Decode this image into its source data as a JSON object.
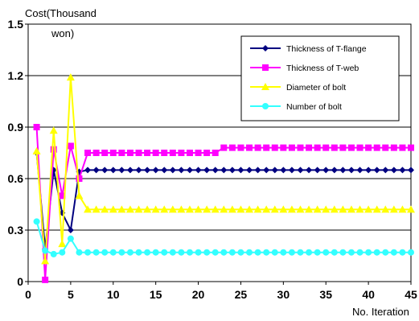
{
  "chart_data": {
    "type": "line",
    "title": "",
    "ylabel_lines": [
      "Cost(Thousand",
      "won)"
    ],
    "xlabel": "No. Iteration",
    "xlim": [
      0,
      45
    ],
    "ylim": [
      0,
      1.5
    ],
    "xticks": [
      0,
      5,
      10,
      15,
      20,
      25,
      30,
      35,
      40,
      45
    ],
    "yticks": [
      0,
      0.3,
      0.6,
      0.9,
      1.2,
      1.5
    ],
    "ytick_labels": [
      "0",
      "0.3",
      "0.6",
      "0.9",
      "1.2",
      "1.5"
    ],
    "grid": "horizontal",
    "legend": "top-right",
    "series": [
      {
        "name": "Thickness of T-flange",
        "color": "#000080",
        "marker": "diamond",
        "x": [
          1,
          2,
          3,
          4,
          5,
          6,
          7,
          8,
          9,
          10,
          11,
          12,
          13,
          14,
          15,
          16,
          17,
          18,
          19,
          20,
          21,
          22,
          23,
          24,
          25,
          26,
          27,
          28,
          29,
          30,
          31,
          32,
          33,
          34,
          35,
          36,
          37,
          38,
          39,
          40,
          41,
          42,
          43,
          44,
          45
        ],
        "values": [
          0.75,
          0.19,
          0.65,
          0.4,
          0.3,
          0.64,
          0.65,
          0.65,
          0.65,
          0.65,
          0.65,
          0.65,
          0.65,
          0.65,
          0.65,
          0.65,
          0.65,
          0.65,
          0.65,
          0.65,
          0.65,
          0.65,
          0.65,
          0.65,
          0.65,
          0.65,
          0.65,
          0.65,
          0.65,
          0.65,
          0.65,
          0.65,
          0.65,
          0.65,
          0.65,
          0.65,
          0.65,
          0.65,
          0.65,
          0.65,
          0.65,
          0.65,
          0.65,
          0.65,
          0.65
        ]
      },
      {
        "name": "Thickness of T-web",
        "color": "#ff00ff",
        "marker": "square",
        "x": [
          1,
          2,
          3,
          4,
          5,
          6,
          7,
          8,
          9,
          10,
          11,
          12,
          13,
          14,
          15,
          16,
          17,
          18,
          19,
          20,
          21,
          22,
          23,
          24,
          25,
          26,
          27,
          28,
          29,
          30,
          31,
          32,
          33,
          34,
          35,
          36,
          37,
          38,
          39,
          40,
          41,
          42,
          43,
          44,
          45
        ],
        "values": [
          0.9,
          0.01,
          0.77,
          0.5,
          0.79,
          0.6,
          0.75,
          0.75,
          0.75,
          0.75,
          0.75,
          0.75,
          0.75,
          0.75,
          0.75,
          0.75,
          0.75,
          0.75,
          0.75,
          0.75,
          0.75,
          0.75,
          0.78,
          0.78,
          0.78,
          0.78,
          0.78,
          0.78,
          0.78,
          0.78,
          0.78,
          0.78,
          0.78,
          0.78,
          0.78,
          0.78,
          0.78,
          0.78,
          0.78,
          0.78,
          0.78,
          0.78,
          0.78,
          0.78,
          0.78
        ]
      },
      {
        "name": "Diameter of bolt",
        "color": "#ffff00",
        "marker": "triangle",
        "x": [
          1,
          2,
          3,
          4,
          5,
          6,
          7,
          8,
          9,
          10,
          11,
          12,
          13,
          14,
          15,
          16,
          17,
          18,
          19,
          20,
          21,
          22,
          23,
          24,
          25,
          26,
          27,
          28,
          29,
          30,
          31,
          32,
          33,
          34,
          35,
          36,
          37,
          38,
          39,
          40,
          41,
          42,
          43,
          44,
          45
        ],
        "values": [
          0.76,
          0.12,
          0.88,
          0.22,
          1.19,
          0.5,
          0.42,
          0.42,
          0.42,
          0.42,
          0.42,
          0.42,
          0.42,
          0.42,
          0.42,
          0.42,
          0.42,
          0.42,
          0.42,
          0.42,
          0.42,
          0.42,
          0.42,
          0.42,
          0.42,
          0.42,
          0.42,
          0.42,
          0.42,
          0.42,
          0.42,
          0.42,
          0.42,
          0.42,
          0.42,
          0.42,
          0.42,
          0.42,
          0.42,
          0.42,
          0.42,
          0.42,
          0.42,
          0.42,
          0.42
        ]
      },
      {
        "name": "Number of bolt",
        "color": "#33ffff",
        "marker": "circle",
        "x": [
          1,
          2,
          3,
          4,
          5,
          6,
          7,
          8,
          9,
          10,
          11,
          12,
          13,
          14,
          15,
          16,
          17,
          18,
          19,
          20,
          21,
          22,
          23,
          24,
          25,
          26,
          27,
          28,
          29,
          30,
          31,
          32,
          33,
          34,
          35,
          36,
          37,
          38,
          39,
          40,
          41,
          42,
          43,
          44,
          45
        ],
        "values": [
          0.35,
          0.18,
          0.16,
          0.17,
          0.25,
          0.17,
          0.17,
          0.17,
          0.17,
          0.17,
          0.17,
          0.17,
          0.17,
          0.17,
          0.17,
          0.17,
          0.17,
          0.17,
          0.17,
          0.17,
          0.17,
          0.17,
          0.17,
          0.17,
          0.17,
          0.17,
          0.17,
          0.17,
          0.17,
          0.17,
          0.17,
          0.17,
          0.17,
          0.17,
          0.17,
          0.17,
          0.17,
          0.17,
          0.17,
          0.17,
          0.17,
          0.17,
          0.17,
          0.17,
          0.17
        ]
      }
    ]
  }
}
